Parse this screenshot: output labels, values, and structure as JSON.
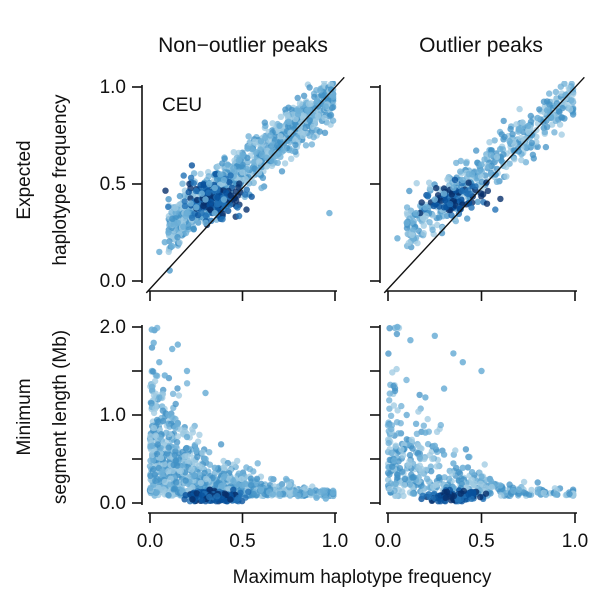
{
  "chart_data": {
    "type": "scatter",
    "figure_xlabel": "Maximum haplotype frequency",
    "row_ylabels": [
      [
        "Expected",
        "haplotype frequency"
      ],
      [
        "Minimum",
        "segment length (Mb)"
      ]
    ],
    "column_titles": [
      "Non−outlier peaks",
      "Outlier peaks"
    ],
    "panels": [
      {
        "id": "top-left",
        "title": "Non−outlier peaks",
        "annotation": "CEU",
        "xlim": [
          0.0,
          1.0
        ],
        "ylim": [
          0.0,
          1.0
        ],
        "xticks": [
          0.0,
          0.5,
          1.0
        ],
        "yticks": [
          0.0,
          0.5,
          1.0
        ],
        "xtick_labels": [],
        "ytick_labels": [
          "0.0",
          "0.5",
          "1.0"
        ],
        "reference_line": "y = x",
        "density": "high",
        "points": [
          [
            0.05,
            0.15
          ],
          [
            0.08,
            0.2
          ],
          [
            0.1,
            0.25
          ],
          [
            0.12,
            0.18
          ],
          [
            0.15,
            0.3
          ],
          [
            0.18,
            0.28
          ],
          [
            0.2,
            0.35
          ],
          [
            0.22,
            0.4
          ],
          [
            0.25,
            0.38
          ],
          [
            0.28,
            0.45
          ],
          [
            0.3,
            0.42
          ],
          [
            0.32,
            0.5
          ],
          [
            0.35,
            0.48
          ],
          [
            0.38,
            0.55
          ],
          [
            0.4,
            0.52
          ],
          [
            0.42,
            0.6
          ],
          [
            0.45,
            0.58
          ],
          [
            0.48,
            0.62
          ],
          [
            0.5,
            0.65
          ],
          [
            0.55,
            0.68
          ],
          [
            0.6,
            0.72
          ],
          [
            0.65,
            0.75
          ],
          [
            0.7,
            0.8
          ],
          [
            0.75,
            0.82
          ],
          [
            0.8,
            0.86
          ],
          [
            0.85,
            0.88
          ],
          [
            0.9,
            0.92
          ],
          [
            0.95,
            0.9
          ],
          [
            0.97,
            0.35
          ],
          [
            0.3,
            0.3
          ],
          [
            0.35,
            0.35
          ],
          [
            0.4,
            0.42
          ]
        ]
      },
      {
        "id": "top-right",
        "title": "Outlier peaks",
        "annotation": "",
        "xlim": [
          0.0,
          1.0
        ],
        "ylim": [
          0.0,
          1.0
        ],
        "xticks": [
          0.0,
          0.5,
          1.0
        ],
        "yticks": [
          0.0,
          0.5,
          1.0
        ],
        "xtick_labels": [],
        "ytick_labels": [],
        "reference_line": "y = x",
        "density": "medium",
        "points": [
          [
            0.05,
            0.22
          ],
          [
            0.1,
            0.3
          ],
          [
            0.15,
            0.35
          ],
          [
            0.2,
            0.38
          ],
          [
            0.25,
            0.42
          ],
          [
            0.3,
            0.45
          ],
          [
            0.35,
            0.48
          ],
          [
            0.4,
            0.52
          ],
          [
            0.45,
            0.55
          ],
          [
            0.5,
            0.6
          ],
          [
            0.55,
            0.65
          ],
          [
            0.6,
            0.68
          ],
          [
            0.65,
            0.72
          ],
          [
            0.7,
            0.78
          ],
          [
            0.75,
            0.8
          ],
          [
            0.8,
            0.84
          ],
          [
            0.85,
            0.88
          ],
          [
            0.9,
            0.9
          ],
          [
            0.95,
            0.96
          ]
        ]
      },
      {
        "id": "bottom-left",
        "title": "",
        "annotation": "",
        "xlim": [
          0.0,
          1.0
        ],
        "ylim": [
          0.0,
          2.0
        ],
        "xticks": [
          0.0,
          0.5,
          1.0
        ],
        "yticks": [
          0.0,
          0.5,
          1.0,
          1.5,
          2.0
        ],
        "xtick_labels": [
          "0.0",
          "0.5",
          "1.0"
        ],
        "ytick_labels": [
          "0.0",
          "",
          "1.0",
          "",
          "2.0"
        ],
        "reference_line": "",
        "density": "high",
        "points": [
          [
            0.01,
            1.97
          ],
          [
            0.02,
            1.82
          ],
          [
            0.05,
            1.6
          ],
          [
            0.08,
            1.45
          ],
          [
            0.12,
            1.75
          ],
          [
            0.15,
            1.8
          ],
          [
            0.2,
            1.5
          ],
          [
            0.3,
            1.25
          ],
          [
            0.05,
            1.2
          ],
          [
            0.1,
            1.0
          ],
          [
            0.15,
            0.9
          ],
          [
            0.2,
            0.75
          ],
          [
            0.25,
            0.6
          ],
          [
            0.3,
            0.5
          ],
          [
            0.35,
            0.4
          ],
          [
            0.4,
            0.3
          ],
          [
            0.45,
            0.25
          ],
          [
            0.5,
            0.2
          ],
          [
            0.6,
            0.15
          ],
          [
            0.7,
            0.1
          ],
          [
            0.8,
            0.08
          ],
          [
            0.9,
            0.06
          ],
          [
            0.95,
            0.05
          ]
        ]
      },
      {
        "id": "bottom-right",
        "title": "",
        "annotation": "",
        "xlim": [
          0.0,
          1.0
        ],
        "ylim": [
          0.0,
          2.0
        ],
        "xticks": [
          0.0,
          0.5,
          1.0
        ],
        "yticks": [
          0.0,
          0.5,
          1.0,
          1.5,
          2.0
        ],
        "xtick_labels": [
          "0.0",
          "0.5",
          "1.0"
        ],
        "ytick_labels": [],
        "reference_line": "",
        "density": "medium",
        "points": [
          [
            0.05,
            2.0
          ],
          [
            0.12,
            1.85
          ],
          [
            0.25,
            1.9
          ],
          [
            0.35,
            1.7
          ],
          [
            0.4,
            1.6
          ],
          [
            0.5,
            1.5
          ],
          [
            0.3,
            1.3
          ],
          [
            0.2,
            1.2
          ],
          [
            0.1,
            1.0
          ],
          [
            0.15,
            0.9
          ],
          [
            0.2,
            0.8
          ],
          [
            0.25,
            0.65
          ],
          [
            0.3,
            0.55
          ],
          [
            0.35,
            0.45
          ],
          [
            0.4,
            0.4
          ],
          [
            0.45,
            0.35
          ],
          [
            0.5,
            0.3
          ],
          [
            0.55,
            0.25
          ],
          [
            0.6,
            0.2
          ],
          [
            0.7,
            0.15
          ],
          [
            0.8,
            0.12
          ],
          [
            0.9,
            0.1
          ]
        ]
      }
    ]
  }
}
